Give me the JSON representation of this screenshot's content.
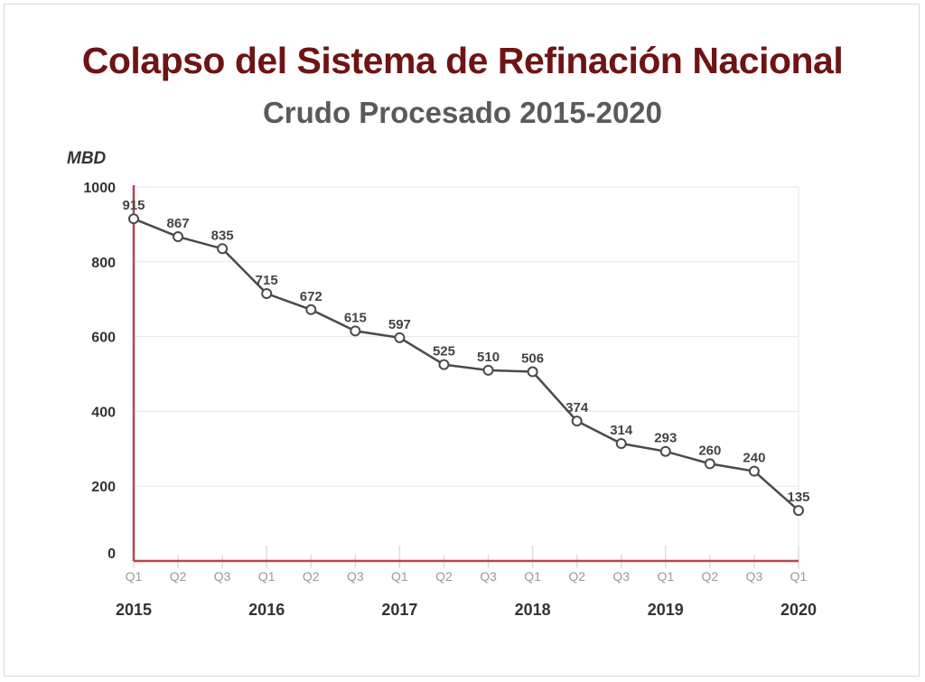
{
  "chart_data": {
    "type": "line",
    "title": "Colapso del Sistema de Refinación Nacional",
    "subtitle": "Crudo Procesado 2015-2020",
    "ylabel": "MBD",
    "xlabel": "",
    "ylim": [
      0,
      1000
    ],
    "yticks": [
      0,
      200,
      400,
      600,
      800,
      1000
    ],
    "grid": true,
    "categories": [
      "Q1",
      "Q2",
      "Q3",
      "Q1",
      "Q2",
      "Q3",
      "Q1",
      "Q2",
      "Q3",
      "Q1",
      "Q2",
      "Q3",
      "Q1",
      "Q2",
      "Q3",
      "Q1"
    ],
    "years": [
      {
        "label": "2015",
        "index": 0
      },
      {
        "label": "2016",
        "index": 3
      },
      {
        "label": "2017",
        "index": 6
      },
      {
        "label": "2018",
        "index": 9
      },
      {
        "label": "2019",
        "index": 12
      },
      {
        "label": "2020",
        "index": 15
      }
    ],
    "values": [
      915,
      867,
      835,
      715,
      672,
      615,
      597,
      525,
      510,
      506,
      374,
      314,
      293,
      260,
      240,
      135
    ],
    "colors": {
      "title": "#6e1414",
      "subtitle": "#5a5a5a",
      "line": "#4a4a4a",
      "axis": "#b5474b",
      "grid": "#e6e6e6"
    }
  }
}
